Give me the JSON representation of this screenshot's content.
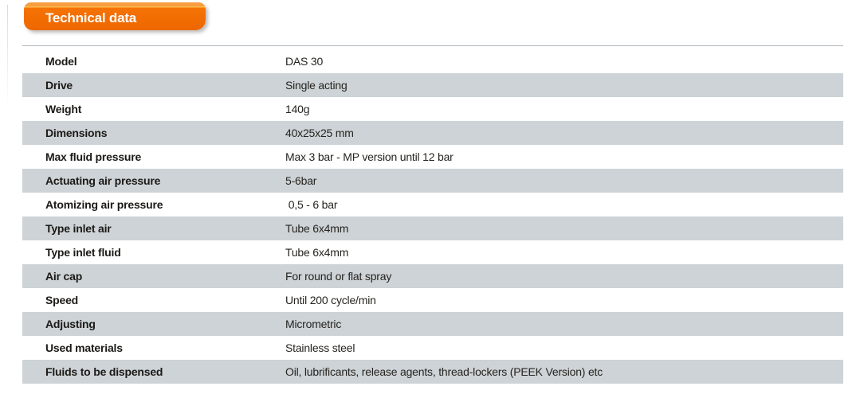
{
  "header": {
    "title": "Technical data",
    "tab_color": "#ee6600",
    "tab_color_light": "#f89d40",
    "title_color": "#ffffff"
  },
  "table": {
    "zebra_color": "#cdd3d6",
    "rows": [
      {
        "label": "Model",
        "value": "DAS 30"
      },
      {
        "label": "Drive",
        "value": "Single acting"
      },
      {
        "label": "Weight",
        "value": "140g"
      },
      {
        "label": "Dimensions",
        "value": "40x25x25 mm"
      },
      {
        "label": "Max fluid pressure",
        "value": "Max 3 bar - MP version until 12 bar"
      },
      {
        "label": "Actuating air pressure",
        "value": "5-6bar"
      },
      {
        "label": "Atomizing air pressure",
        "value": " 0,5 - 6 bar"
      },
      {
        "label": "Type inlet air",
        "value": "Tube 6x4mm"
      },
      {
        "label": "Type inlet fluid",
        "value": "Tube 6x4mm"
      },
      {
        "label": "Air cap",
        "value": "For round or flat spray"
      },
      {
        "label": "Speed",
        "value": "Until 200 cycle/min"
      },
      {
        "label": "Adjusting",
        "value": "Micrometric"
      },
      {
        "label": "Used materials",
        "value": "Stainless steel"
      },
      {
        "label": "Fluids to be dispensed",
        "value": "Oil, lubrificants, release agents, thread-lockers (PEEK Version) etc"
      }
    ]
  }
}
